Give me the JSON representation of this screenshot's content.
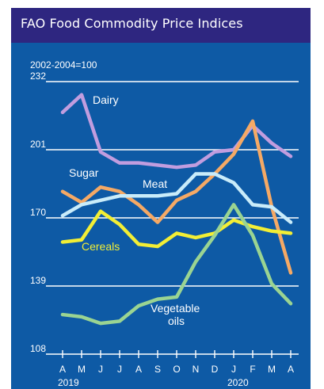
{
  "title": "FAO Food Commodity Price Indices",
  "chart_data": {
    "type": "line",
    "title": "FAO Food Commodity Price Indices",
    "ylabel": "2002-2004=100",
    "ylim": [
      108,
      232
    ],
    "yticks": [
      108,
      139,
      170,
      201,
      232
    ],
    "categories": [
      "A",
      "M",
      "J",
      "J",
      "A",
      "S",
      "O",
      "N",
      "D",
      "J",
      "F",
      "M",
      "A"
    ],
    "year_labels": [
      "2019",
      "2020"
    ],
    "grid": true,
    "legend": "inline labels",
    "series": [
      {
        "name": "Dairy",
        "color": "#c19ddf",
        "values": [
          218,
          226,
          200,
          195,
          195,
          194,
          193,
          194,
          200,
          201,
          212,
          204,
          198
        ]
      },
      {
        "name": "Sugar",
        "color": "#f5a965",
        "values": [
          182,
          177,
          184,
          182,
          176,
          168,
          178,
          182,
          190,
          199,
          214,
          175,
          145
        ]
      },
      {
        "name": "Meat",
        "color": "#c9ecfa",
        "values": [
          171,
          176,
          178,
          180,
          180,
          180,
          181,
          190,
          190,
          186,
          176,
          175,
          168
        ]
      },
      {
        "name": "Cereals",
        "color": "#f2ee35",
        "values": [
          159,
          160,
          173,
          167,
          158,
          157,
          163,
          161,
          163,
          169,
          166,
          164,
          163
        ]
      },
      {
        "name": "Vegetable oils",
        "color": "#9ad492",
        "values": [
          126,
          125,
          122,
          123,
          130,
          133,
          134,
          150,
          162,
          176,
          162,
          140,
          131
        ]
      }
    ]
  }
}
